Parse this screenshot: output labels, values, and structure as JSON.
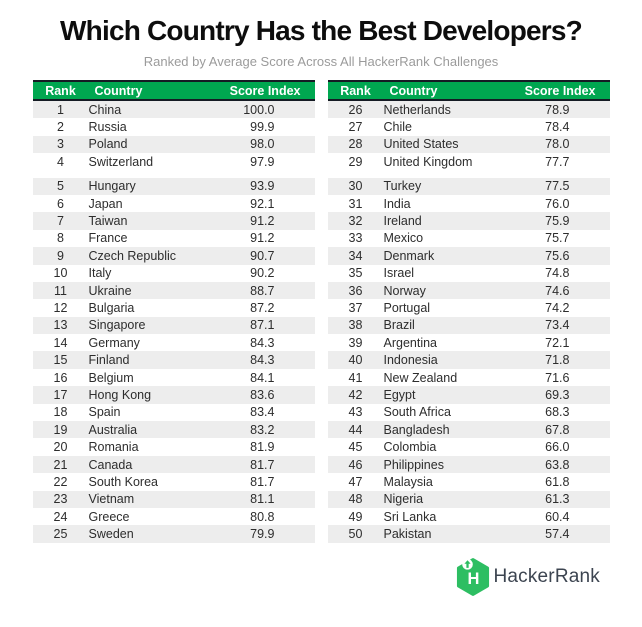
{
  "chart_data": {
    "type": "table",
    "title": "Which Country Has the Best Developers?",
    "subtitle": "Ranked by Average Score Across All HackerRank Challenges",
    "columns": {
      "rank": "Rank",
      "country": "Country",
      "score": "Score Index"
    },
    "tables": [
      {
        "name": "ranks-1-25",
        "rows": [
          [
            "1",
            "China",
            "100.0"
          ],
          [
            "2",
            "Russia",
            "99.9"
          ],
          [
            "3",
            "Poland",
            "98.0"
          ],
          [
            "4",
            "Switzerland",
            "97.9"
          ],
          [
            "5",
            "Hungary",
            "93.9"
          ],
          [
            "6",
            "Japan",
            "92.1"
          ],
          [
            "7",
            "Taiwan",
            "91.2"
          ],
          [
            "8",
            "France",
            "91.2"
          ],
          [
            "9",
            "Czech Republic",
            "90.7"
          ],
          [
            "10",
            "Italy",
            "90.2"
          ],
          [
            "11",
            "Ukraine",
            "88.7"
          ],
          [
            "12",
            "Bulgaria",
            "87.2"
          ],
          [
            "13",
            "Singapore",
            "87.1"
          ],
          [
            "14",
            "Germany",
            "84.3"
          ],
          [
            "15",
            "Finland",
            "84.3"
          ],
          [
            "16",
            "Belgium",
            "84.1"
          ],
          [
            "17",
            "Hong Kong",
            "83.6"
          ],
          [
            "18",
            "Spain",
            "83.4"
          ],
          [
            "19",
            "Australia",
            "83.2"
          ],
          [
            "20",
            "Romania",
            "81.9"
          ],
          [
            "21",
            "Canada",
            "81.7"
          ],
          [
            "22",
            "South Korea",
            "81.7"
          ],
          [
            "23",
            "Vietnam",
            "81.1"
          ],
          [
            "24",
            "Greece",
            "80.8"
          ],
          [
            "25",
            "Sweden",
            "79.9"
          ]
        ]
      },
      {
        "name": "ranks-26-50",
        "rows": [
          [
            "26",
            "Netherlands",
            "78.9"
          ],
          [
            "27",
            "Chile",
            "78.4"
          ],
          [
            "28",
            "United States",
            "78.0"
          ],
          [
            "29",
            "United Kingdom",
            "77.7"
          ],
          [
            "30",
            "Turkey",
            "77.5"
          ],
          [
            "31",
            "India",
            "76.0"
          ],
          [
            "32",
            "Ireland",
            "75.9"
          ],
          [
            "33",
            "Mexico",
            "75.7"
          ],
          [
            "34",
            "Denmark",
            "75.6"
          ],
          [
            "35",
            "Israel",
            "74.8"
          ],
          [
            "36",
            "Norway",
            "74.6"
          ],
          [
            "37",
            "Portugal",
            "74.2"
          ],
          [
            "38",
            "Brazil",
            "73.4"
          ],
          [
            "39",
            "Argentina",
            "72.1"
          ],
          [
            "40",
            "Indonesia",
            "71.8"
          ],
          [
            "41",
            "New Zealand",
            "71.6"
          ],
          [
            "42",
            "Egypt",
            "69.3"
          ],
          [
            "43",
            "South Africa",
            "68.3"
          ],
          [
            "44",
            "Bangladesh",
            "67.8"
          ],
          [
            "45",
            "Colombia",
            "66.0"
          ],
          [
            "46",
            "Philippines",
            "63.8"
          ],
          [
            "47",
            "Malaysia",
            "61.8"
          ],
          [
            "48",
            "Nigeria",
            "61.3"
          ],
          [
            "49",
            "Sri Lanka",
            "60.4"
          ],
          [
            "50",
            "Pakistan",
            "57.4"
          ]
        ]
      }
    ],
    "layout_hints": {
      "grid": false,
      "two_column_table": true,
      "group_gap_after_row_index": 3
    }
  },
  "brand": {
    "name": "HackerRank",
    "letter": "H",
    "logo_icon": "hackerrank-hexagon-icon"
  },
  "colors": {
    "header_green": "#00A750",
    "logo_green": "#2DBE62",
    "border_dark": "#151B24",
    "row_alt": "#EDEDED",
    "body_text": "#2D2D2D",
    "title_text": "#0D0D0D",
    "subtitle_text": "#9B9B9B",
    "logo_text": "#3C4450"
  }
}
